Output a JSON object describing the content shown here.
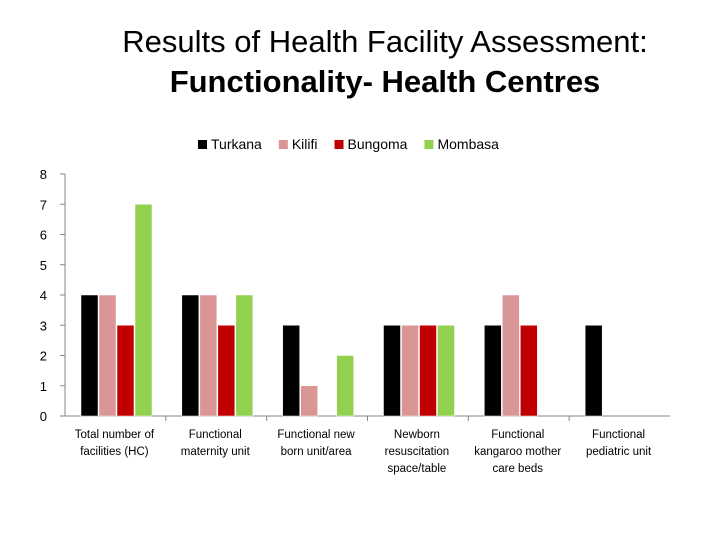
{
  "slide": {
    "title_line1": "Results of Health Facility Assessment:",
    "title_line2": "Functionality- Health Centres"
  },
  "chart_data": {
    "type": "bar",
    "categories": [
      [
        "Total number of",
        "facilities (HC)"
      ],
      [
        "Functional",
        "maternity unit"
      ],
      [
        "Functional new",
        "born unit/area"
      ],
      [
        "Newborn",
        "resuscitation",
        "space/table"
      ],
      [
        "Functional",
        "kangaroo mother",
        "care beds"
      ],
      [
        "Functional",
        "pediatric unit"
      ]
    ],
    "series": [
      {
        "name": "Turkana",
        "color": "#000000",
        "values": [
          4,
          4,
          3,
          3,
          3,
          3
        ]
      },
      {
        "name": "Kilifi",
        "color": "#d99694",
        "values": [
          4,
          4,
          1,
          3,
          4,
          null
        ]
      },
      {
        "name": "Bungoma",
        "color": "#c00000",
        "values": [
          3,
          3,
          null,
          3,
          3,
          null
        ]
      },
      {
        "name": "Mombasa",
        "color": "#92d050",
        "values": [
          7,
          4,
          2,
          3,
          null,
          null
        ]
      }
    ],
    "ylim": [
      0,
      8
    ],
    "yticks": [
      0,
      1,
      2,
      3,
      4,
      5,
      6,
      7,
      8
    ],
    "legend_position": "top",
    "grid": false
  }
}
